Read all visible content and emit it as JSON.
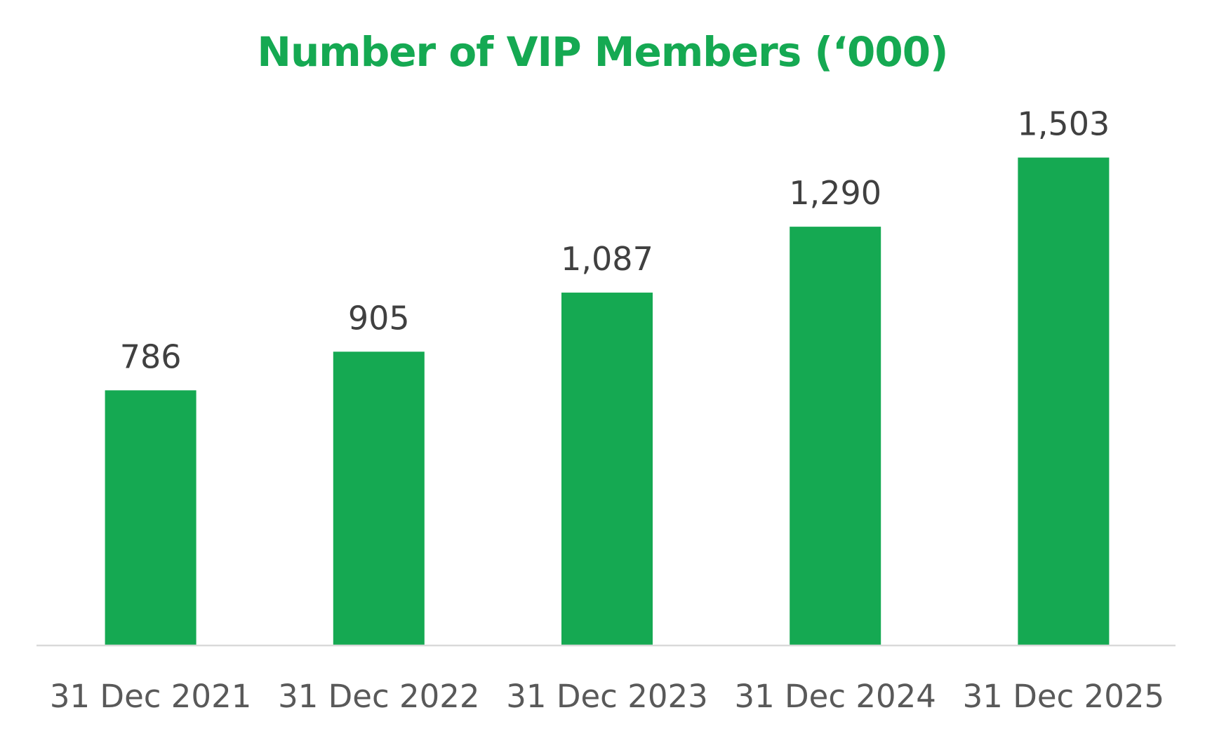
{
  "chart_data": {
    "type": "bar",
    "title": "Number of VIP Members (‘000)",
    "xlabel": "",
    "ylabel": "",
    "categories": [
      "31 Dec 2021",
      "31 Dec 2022",
      "31 Dec 2023",
      "31 Dec 2024",
      "31 Dec 2025"
    ],
    "series": [
      {
        "values": [
          786,
          905,
          1087,
          1290,
          1503
        ],
        "data_labels": [
          "786",
          "905",
          "1,087",
          "1,290",
          "1,503"
        ]
      }
    ],
    "ylim": [
      0,
      1700
    ],
    "grid": false,
    "legend": "none",
    "colors": {
      "bar": "#15a952",
      "title": "#15a952",
      "data_label": "#404040",
      "tick_label": "#595959",
      "axis_line": "#d9d9d9"
    }
  }
}
